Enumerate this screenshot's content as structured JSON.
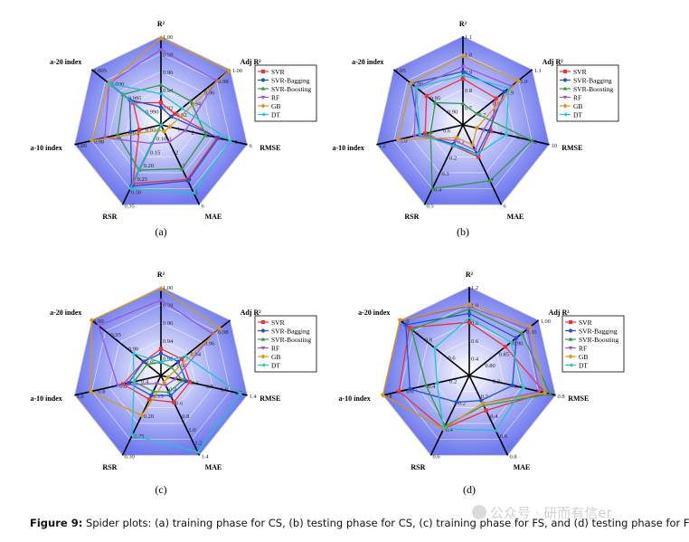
{
  "caption": {
    "label": "Figure 9:",
    "text": "Spider plots: (a) training phase for CS, (b) testing phase for CS, (c) training phase for FS, and (d) testing phase for FS."
  },
  "watermark": "公众号 · 研而有信er",
  "colors": {
    "SVR": "#e8333a",
    "SVR-Bagging": "#1f4fd8",
    "SVR-Boosting": "#2e9a3e",
    "RF": "#9b57d3",
    "GB": "#d99a13",
    "DT": "#1fc4cc"
  },
  "chart_data": [
    {
      "type": "radar",
      "panel_label": "(a)",
      "axes": [
        "R²",
        "Adj R²",
        "RMSE",
        "MAE",
        "RSR",
        "a-10 index",
        "a-20 index"
      ],
      "axis_ticks": [
        [
          "0.92",
          "0.94",
          "0.96",
          "0.98",
          "1.00"
        ],
        [
          "0.92",
          "0.94",
          "0.96",
          "0.98",
          "1.00"
        ],
        [
          "1",
          "2",
          "3",
          "4",
          "5",
          "6"
        ],
        [
          "1",
          "2",
          "3",
          "4",
          "5",
          "6"
        ],
        [
          "0.10",
          "0.15",
          "0.20",
          "0.25",
          "0.30",
          "0.35"
        ],
        [
          "0.92",
          "0.94",
          "0.96",
          "0.98",
          "1.00"
        ],
        [
          "0.990",
          "0.995",
          "1.000",
          "1.005"
        ]
      ],
      "axis_ranges": [
        [
          0.9,
          1.0
        ],
        [
          0.9,
          1.0
        ],
        [
          0,
          6
        ],
        [
          0,
          6
        ],
        [
          0.05,
          0.35
        ],
        [
          0.9,
          1.0
        ],
        [
          0.985,
          1.005
        ]
      ],
      "series": [
        {
          "name": "SVR",
          "values": [
            0.925,
            0.92,
            3.9,
            4.1,
            0.27,
            0.925,
            0.993
          ]
        },
        {
          "name": "SVR-Bagging",
          "values": [
            0.92,
            0.915,
            4.0,
            4.2,
            0.28,
            0.935,
            0.994
          ]
        },
        {
          "name": "SVR-Boosting",
          "values": [
            0.945,
            0.943,
            3.1,
            3.3,
            0.22,
            0.95,
            0.996
          ]
        },
        {
          "name": "RF",
          "values": [
            0.985,
            0.98,
            1.7,
            1.3,
            0.12,
            0.965,
            1.0
          ]
        },
        {
          "name": "GB",
          "values": [
            0.998,
            0.998,
            0.6,
            0.5,
            0.07,
            0.98,
            1.0
          ]
        },
        {
          "name": "DT",
          "values": [
            0.935,
            0.93,
            4.8,
            5.1,
            0.29,
            0.9,
            1.0
          ]
        }
      ]
    },
    {
      "type": "radar",
      "panel_label": "(b)",
      "axes": [
        "R²",
        "Adj R²",
        "RMSE",
        "MAE",
        "RSR",
        "a-10 index",
        "a-20 index"
      ],
      "axis_ticks": [
        [
          "0.7",
          "0.8",
          "0.9",
          "1.0",
          "1.1"
        ],
        [
          "0.7",
          "0.8",
          "0.9",
          "1.0",
          "1.1"
        ],
        [
          "2",
          "4",
          "6",
          "8",
          "10"
        ],
        [
          "2",
          "4",
          "6"
        ],
        [
          "0.1",
          "0.2",
          "0.3",
          "0.4",
          "0.5"
        ],
        [
          "0.6",
          "0.8",
          "1.0",
          "1.2"
        ],
        [
          "0.90",
          "0.95",
          "1.00",
          "1.05"
        ]
      ],
      "axis_ranges": [
        [
          0.6,
          1.1
        ],
        [
          0.6,
          1.1
        ],
        [
          0,
          10
        ],
        [
          0,
          6
        ],
        [
          0,
          0.5
        ],
        [
          0.4,
          1.2
        ],
        [
          0.85,
          1.05
        ]
      ],
      "series": [
        {
          "name": "SVR",
          "values": [
            0.86,
            0.84,
            3.2,
            2.4,
            0.13,
            0.75,
            0.955
          ]
        },
        {
          "name": "SVR-Bagging",
          "values": [
            0.9,
            0.9,
            3.0,
            2.2,
            0.12,
            0.8,
            1.0
          ]
        },
        {
          "name": "SVR-Boosting",
          "values": [
            0.72,
            0.7,
            8.0,
            4.2,
            0.4,
            0.7,
            0.93
          ]
        },
        {
          "name": "RF",
          "values": [
            0.93,
            0.95,
            2.4,
            1.9,
            0.1,
            0.85,
            0.985
          ]
        },
        {
          "name": "GB",
          "values": [
            0.99,
            1.0,
            1.6,
            1.5,
            0.08,
            1.0,
            1.0
          ]
        },
        {
          "name": "DT",
          "values": [
            0.88,
            0.93,
            5.0,
            2.2,
            0.13,
            0.8,
            0.985
          ]
        }
      ]
    },
    {
      "type": "radar",
      "panel_label": "(c)",
      "axes": [
        "R²",
        "Adj R²",
        "RMSE",
        "MAE",
        "RSR",
        "a-10 index",
        "a-20 index"
      ],
      "axis_ticks": [
        [
          "0.92",
          "0.94",
          "0.96",
          "0.98",
          "1.00"
        ],
        [
          "0.92",
          "0.94",
          "0.96",
          "0.98"
        ],
        [
          "0.4",
          "0.6",
          "0.8",
          "1.0",
          "1.2",
          "1.4"
        ],
        [
          "0.4",
          "0.6",
          "0.8",
          "1.0",
          "1.2",
          "1.4"
        ],
        [
          "0.15",
          "0.20",
          "0.25",
          "0.30"
        ],
        [
          "0.4",
          "0.6",
          "0.8",
          "1.0"
        ],
        [
          "0.85",
          "0.90",
          "0.95",
          "1.00"
        ]
      ],
      "axis_ranges": [
        [
          0.9,
          1.0
        ],
        [
          0.9,
          1.0
        ],
        [
          0.2,
          1.4
        ],
        [
          0.2,
          1.4
        ],
        [
          0.1,
          0.3
        ],
        [
          0.2,
          1.0
        ],
        [
          0.8,
          1.0
        ]
      ],
      "series": [
        {
          "name": "SVR",
          "values": [
            0.93,
            0.93,
            0.6,
            0.6,
            0.16,
            0.55,
            0.85
          ]
        },
        {
          "name": "SVR-Bagging",
          "values": [
            0.925,
            0.925,
            0.55,
            0.5,
            0.15,
            0.5,
            0.85
          ]
        },
        {
          "name": "SVR-Boosting",
          "values": [
            0.915,
            0.915,
            0.5,
            0.45,
            0.14,
            0.45,
            0.84
          ]
        },
        {
          "name": "RF",
          "values": [
            0.985,
            0.975,
            0.4,
            0.35,
            0.12,
            0.6,
            0.98
          ]
        },
        {
          "name": "GB",
          "values": [
            0.998,
            0.985,
            0.3,
            0.3,
            0.2,
            0.85,
            1.0
          ]
        },
        {
          "name": "DT",
          "values": [
            0.915,
            0.935,
            1.3,
            1.35,
            0.25,
            0.45,
            0.88
          ]
        }
      ]
    },
    {
      "type": "radar",
      "panel_label": "(d)",
      "axes": [
        "R²",
        "Adj R²",
        "RMSE",
        "MAE",
        "RSR",
        "a-10 index",
        "a-20 index"
      ],
      "axis_ticks": [
        [
          "0.4",
          "0.6",
          "0.8",
          "1.0",
          "1.2"
        ],
        [
          "0.80",
          "0.85",
          "0.90",
          "0.95",
          "1.00"
        ],
        [
          "0.2",
          "0.4",
          "0.6",
          "0.8"
        ],
        [
          "0.2",
          "0.4",
          "0.6",
          "0.8"
        ],
        [
          "0.2",
          "0.4",
          "0.6"
        ],
        [
          "0.2",
          "0.4",
          "0.6",
          "0.8"
        ],
        [
          "0.6",
          "0.8",
          "1.0"
        ]
      ],
      "axis_ranges": [
        [
          0.2,
          1.2
        ],
        [
          0.75,
          1.0
        ],
        [
          0,
          0.8
        ],
        [
          0,
          0.8
        ],
        [
          0,
          0.6
        ],
        [
          0,
          0.8
        ],
        [
          0.4,
          1.0
        ]
      ],
      "series": [
        {
          "name": "SVR",
          "values": [
            0.8,
            0.88,
            0.7,
            0.35,
            0.4,
            0.65,
            0.92
          ]
        },
        {
          "name": "SVR-Bagging",
          "values": [
            0.9,
            0.92,
            0.4,
            0.25,
            0.2,
            0.55,
            0.95
          ]
        },
        {
          "name": "SVR-Boosting",
          "values": [
            0.95,
            0.94,
            0.75,
            0.3,
            0.38,
            0.4,
            0.9
          ]
        },
        {
          "name": "RF",
          "values": [
            0.98,
            0.96,
            0.65,
            0.28,
            0.4,
            0.8,
            1.0
          ]
        },
        {
          "name": "GB",
          "values": [
            1.0,
            0.97,
            0.7,
            0.28,
            0.4,
            0.8,
            1.0
          ]
        },
        {
          "name": "DT",
          "values": [
            0.85,
            0.9,
            0.5,
            0.55,
            0.4,
            0.3,
            0.7
          ]
        }
      ]
    }
  ]
}
